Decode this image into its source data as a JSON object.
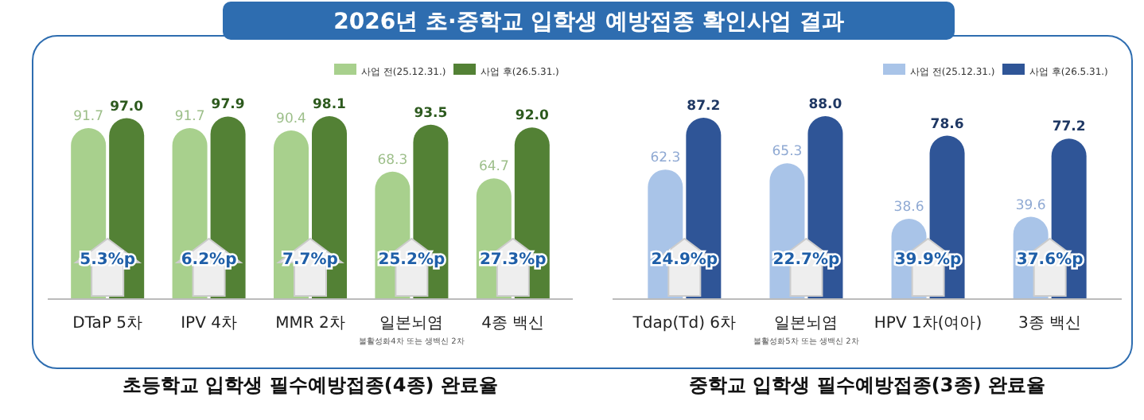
{
  "chart_data": [
    {
      "type": "bar",
      "title": "초등학교 입학생 필수예방접종(4종) 완료율",
      "categories": [
        "DTaP 5차",
        "IPV 4차",
        "MMR 2차",
        "일본뇌염",
        "4종 백신"
      ],
      "series": [
        {
          "name": "사업 전(25.12.31.)",
          "color": "#a8d08d",
          "values": [
            91.7,
            91.7,
            90.4,
            68.3,
            64.7
          ],
          "value_labels": [
            "91.7",
            "91.7",
            "90.4",
            "68.3",
            "64.7"
          ]
        },
        {
          "name": "사업 후(26.5.31.)",
          "color": "#538135",
          "values": [
            97.0,
            97.9,
            98.1,
            93.5,
            92.0
          ],
          "value_labels": [
            "97.0",
            "97.9",
            "98.1",
            "93.5",
            "92.0"
          ]
        }
      ],
      "tick_labels": "x",
      "legend": "top right",
      "annotations": [
        "2026년 초·중학교 입학생 예방접종 확인사업 결과",
        {
          "text": "5.3%p",
          "x": "DTaP 5차"
        },
        {
          "text": "6.2%p",
          "x": "IPV 4차"
        },
        {
          "text": "7.7%p",
          "x": "MMR 2차"
        },
        {
          "text": "25.2%p",
          "x": "일본뇌염"
        },
        {
          "text": "27.3%p",
          "x": "4종 백신"
        },
        "불활성화4차 또는 생백신 2차"
      ]
    },
    {
      "type": "bar",
      "title": "중학교 입학생 필수예방접종(3종) 완료율",
      "categories": [
        "Tdap(Td) 6차",
        "일본뇌염",
        "HPV 1차(여아)",
        "3종 백신"
      ],
      "series": [
        {
          "name": "사업 전(25.12.31.)",
          "color": "#a9c4e8",
          "values": [
            62.3,
            65.3,
            38.6,
            39.6
          ],
          "value_labels": [
            "62.3",
            "65.3",
            "38.6",
            "39.6"
          ]
        },
        {
          "name": "사업 후(26.5.31.)",
          "color": "#2f5597",
          "values": [
            87.2,
            88.0,
            78.6,
            77.2
          ],
          "value_labels": [
            "87.2",
            "88.0",
            "78.6",
            "77.2"
          ]
        }
      ],
      "tick_labels": "x",
      "legend": "top right",
      "annotations": [
        {
          "text": "24.9%p",
          "x": "Tdap(Td) 6차"
        },
        {
          "text": "22.7%p",
          "x": "일본뇌염"
        },
        {
          "text": "39.9%p",
          "x": "HPV 1차(여아)"
        },
        {
          "text": "37.6%p",
          "x": "3종 백신"
        },
        "불활성화5차 또는 생백신 2차"
      ]
    }
  ]
}
